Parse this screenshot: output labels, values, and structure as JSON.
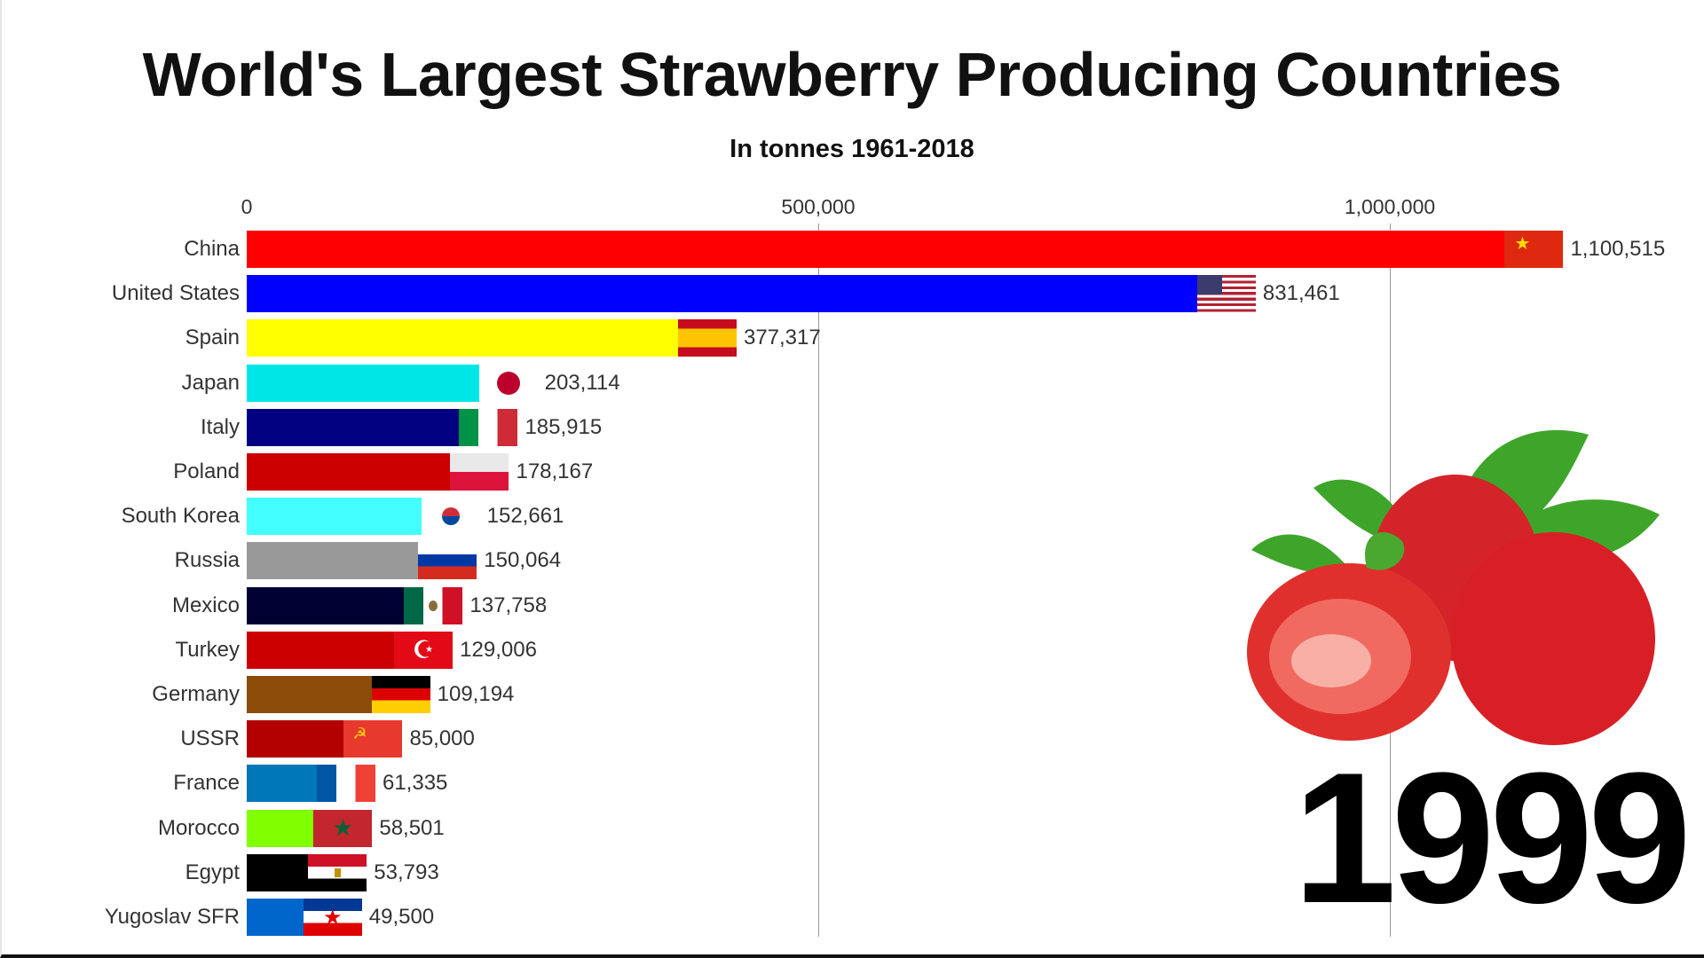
{
  "chart_data": {
    "type": "bar",
    "orientation": "horizontal",
    "title": "World's Largest Strawberry Producing Countries",
    "subtitle": "In tonnes 1961-2018",
    "year": "1999",
    "xlim": [
      0,
      1150000
    ],
    "xticks": [
      0,
      500000,
      1000000
    ],
    "xtick_labels": [
      "0",
      "500,000",
      "1,000,000"
    ],
    "grid": true,
    "categories": [
      "China",
      "United States",
      "Spain",
      "Japan",
      "Italy",
      "Poland",
      "South Korea",
      "Russia",
      "Mexico",
      "Turkey",
      "Germany",
      "USSR",
      "France",
      "Morocco",
      "Egypt",
      "Yugoslav SFR"
    ],
    "values": [
      1100515,
      831461,
      377317,
      203114,
      185915,
      178167,
      152661,
      150064,
      137758,
      129006,
      109194,
      85000,
      61335,
      58501,
      53793,
      49500
    ],
    "value_labels": [
      "1,100,515",
      "831,461",
      "377,317",
      "203,114",
      "185,915",
      "178,167",
      "152,661",
      "150,064",
      "137,758",
      "129,006",
      "109,194",
      "85,000",
      "61,335",
      "58,501",
      "53,793",
      "49,500"
    ],
    "colors": [
      "#ff0000",
      "#0000ff",
      "#ffff00",
      "#00e6e6",
      "#000080",
      "#cc0000",
      "#44ffff",
      "#999999",
      "#000033",
      "#cc0000",
      "#8b4c0a",
      "#b30000",
      "#0077b6",
      "#80ff00",
      "#000000",
      "#0066cc"
    ],
    "flags": [
      "china",
      "us",
      "spain",
      "japan",
      "italy",
      "poland",
      "korea",
      "russia",
      "mexico",
      "turkey",
      "germany",
      "ussr",
      "france",
      "morocco",
      "egypt",
      "yugoslavia"
    ]
  }
}
